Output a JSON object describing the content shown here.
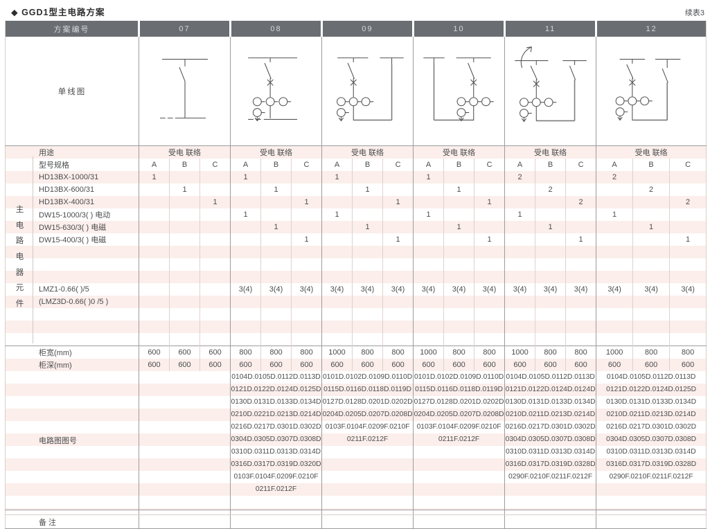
{
  "page": {
    "title": "◆ GGD1型主电路方案",
    "continuation": "续表3"
  },
  "header": {
    "plan_label": "方案编号",
    "schemes": [
      "07",
      "08",
      "09",
      "10",
      "11",
      "12"
    ]
  },
  "diagram_row": {
    "label": "单线图"
  },
  "usage_row": {
    "label": "用途",
    "values": [
      "受电 联络",
      "受电 联络",
      "受电 联络",
      "受电 联络",
      "受电 联络",
      "受电 联络"
    ]
  },
  "spec_row_label": "型号规格",
  "subcolumns": [
    "A",
    "B",
    "C"
  ],
  "side_label": [
    "主",
    "电",
    "路",
    "电",
    "器",
    "元",
    "件"
  ],
  "component_rows": [
    {
      "label": "HD13BX-1000/31",
      "values": [
        "1",
        "",
        "",
        "1",
        "",
        "",
        "1",
        "",
        "",
        "1",
        "",
        "",
        "2",
        "",
        "",
        "2",
        "",
        ""
      ]
    },
    {
      "label": "HD13BX-600/31",
      "values": [
        "",
        "1",
        "",
        "",
        "1",
        "",
        "",
        "1",
        "",
        "",
        "1",
        "",
        "",
        "2",
        "",
        "",
        "2",
        ""
      ]
    },
    {
      "label": "HD13BX-400/31",
      "values": [
        "",
        "",
        "1",
        "",
        "",
        "1",
        "",
        "",
        "1",
        "",
        "",
        "1",
        "",
        "",
        "2",
        "",
        "",
        "2"
      ]
    },
    {
      "label": "DW15-1000/3( )  电动",
      "values": [
        "",
        "",
        "",
        "1",
        "",
        "",
        "1",
        "",
        "",
        "1",
        "",
        "",
        "1",
        "",
        "",
        "1",
        "",
        ""
      ]
    },
    {
      "label": "DW15-630/3( )  电磁",
      "values": [
        "",
        "",
        "",
        "",
        "1",
        "",
        "",
        "1",
        "",
        "",
        "1",
        "",
        "",
        "1",
        "",
        "",
        "1",
        ""
      ]
    },
    {
      "label": "DW15-400/3( )  电磁",
      "values": [
        "",
        "",
        "",
        "",
        "",
        "1",
        "",
        "",
        "1",
        "",
        "",
        "1",
        "",
        "",
        "1",
        "",
        "",
        "1"
      ]
    },
    {
      "label": "",
      "values": []
    },
    {
      "label": "",
      "values": []
    },
    {
      "label": "",
      "values": []
    },
    {
      "label": "LMZ1-0.66( )/5",
      "values": [
        "",
        "",
        "",
        "3(4)",
        "3(4)",
        "3(4)",
        "3(4)",
        "3(4)",
        "3(4)",
        "3(4)",
        "3(4)",
        "3(4)",
        "3(4)",
        "3(4)",
        "3(4)",
        "3(4)",
        "3(4)",
        "3(4)"
      ]
    },
    {
      "label": "(LMZ3D-0.66( )0 /5 )",
      "values": []
    },
    {
      "label": "",
      "values": []
    },
    {
      "label": "",
      "values": []
    },
    {
      "label": "",
      "values": []
    }
  ],
  "dimension_rows": [
    {
      "label": "柜宽(mm)",
      "values": [
        "600",
        "600",
        "600",
        "800",
        "800",
        "800",
        "1000",
        "800",
        "800",
        "1000",
        "800",
        "800",
        "1000",
        "800",
        "800",
        "1000",
        "800",
        "800"
      ]
    },
    {
      "label": "柜深(mm)",
      "values": [
        "600",
        "600",
        "600",
        "600",
        "600",
        "600",
        "600",
        "600",
        "600",
        "600",
        "600",
        "600",
        "600",
        "600",
        "600",
        "600",
        "600",
        "600"
      ]
    }
  ],
  "drawing_row": {
    "label": "电路图图号",
    "schemes": [
      [],
      [
        "0104D.0105D.0112D.0113D",
        "0121D.0122D.0124D.0125D",
        "0130D.0131D.0133D.0134D",
        "0210D.0221D.0213D.0214D",
        "0216D.0217D.0301D.0302D",
        "0304D.0305D.0307D.0308D",
        "0310D.0311D.0313D.0314D",
        "0316D.0317D.0319D.0320D",
        "0103F.0104F.0209F.0210F",
        "0211F.0212F"
      ],
      [
        "0101D.0102D.0109D.0110D",
        "0115D.0116D.0118D.0119D",
        "0127D.0128D.0201D.0202D",
        "0204D.0205D.0207D.0208D",
        "0103F.0104F.0209F.0210F",
        "0211F.0212F"
      ],
      [
        "0101D.0102D.0109D.0110D",
        "0115D.0116D.0118D.0119D",
        "0127D.0128D.0201D.0202D",
        "0204D.0205D.0207D.0208D",
        "0103F.0104F.0209F.0210F",
        "0211F.0212F"
      ],
      [
        "0104D.0105D.0112D.0113D",
        "0121D.0122D.0124D.0124D",
        "0130D.0131D.0133D.0134D",
        "0210D.0211D.0213D.0214D",
        "0216D.0217D.0301D.0302D",
        "0304D.0305D.0307D.0308D",
        "0310D.0311D.0313D.0314D",
        "0316D.0317D.0319D.0328D",
        "0290F.0210F.0211F.0212F"
      ],
      [
        "0104D.0105D.0112D.0113D",
        "0121D.0122D.0124D.0125D",
        "0130D.0131D.0133D.0134D",
        "0210D.0211D.0213D.0214D",
        "0216D.0217D.0301D.0302D",
        "0304D.0305D.0307D.0308D",
        "0310D.0311D.0313D.0314D",
        "0316D.0317D.0319D.0328D",
        "0290F.0210F.0211F.0212F"
      ]
    ]
  },
  "remarks_row": {
    "label": "备 注"
  },
  "colors": {
    "header_bg": "#6a6e72",
    "stripe_pink": "#fbeeeb",
    "separator_dark": "#9c9c9c",
    "separator_light": "#ddd2ce",
    "text": "#4b4c4e"
  }
}
